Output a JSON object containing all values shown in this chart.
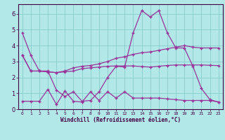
{
  "xlabel": "Windchill (Refroidissement éolien,°C)",
  "x_values": [
    0,
    1,
    2,
    3,
    4,
    5,
    6,
    7,
    8,
    9,
    10,
    11,
    12,
    13,
    14,
    15,
    16,
    17,
    18,
    19,
    20,
    21,
    22,
    23
  ],
  "line1": [
    4.8,
    3.4,
    2.4,
    2.4,
    1.2,
    0.8,
    1.1,
    0.5,
    0.55,
    1.1,
    2.0,
    2.7,
    2.65,
    4.8,
    6.2,
    5.8,
    6.2,
    4.8,
    3.85,
    3.85,
    2.7,
    1.3,
    0.6,
    0.45
  ],
  "line2": [
    3.4,
    2.4,
    2.4,
    2.35,
    2.3,
    2.4,
    2.6,
    2.7,
    2.75,
    2.85,
    3.0,
    3.2,
    3.3,
    3.45,
    3.55,
    3.6,
    3.7,
    3.8,
    3.9,
    4.0,
    3.9,
    3.85,
    3.85,
    3.85
  ],
  "line3": [
    3.4,
    2.4,
    2.4,
    2.35,
    2.3,
    2.35,
    2.4,
    2.55,
    2.6,
    2.65,
    2.7,
    2.72,
    2.72,
    2.72,
    2.68,
    2.65,
    2.7,
    2.75,
    2.78,
    2.78,
    2.78,
    2.78,
    2.76,
    2.74
  ],
  "line4": [
    0.5,
    0.5,
    0.5,
    1.25,
    0.3,
    1.15,
    0.5,
    0.45,
    1.1,
    0.55,
    1.1,
    0.7,
    1.1,
    0.7,
    0.7,
    0.7,
    0.7,
    0.65,
    0.6,
    0.55,
    0.55,
    0.55,
    0.55,
    0.45
  ],
  "line_color": "#993399",
  "bg_color": "#b3e8e8",
  "grid_color": "#88cccc",
  "ylim": [
    0,
    6.6
  ],
  "xlim": [
    -0.5,
    23.5
  ]
}
